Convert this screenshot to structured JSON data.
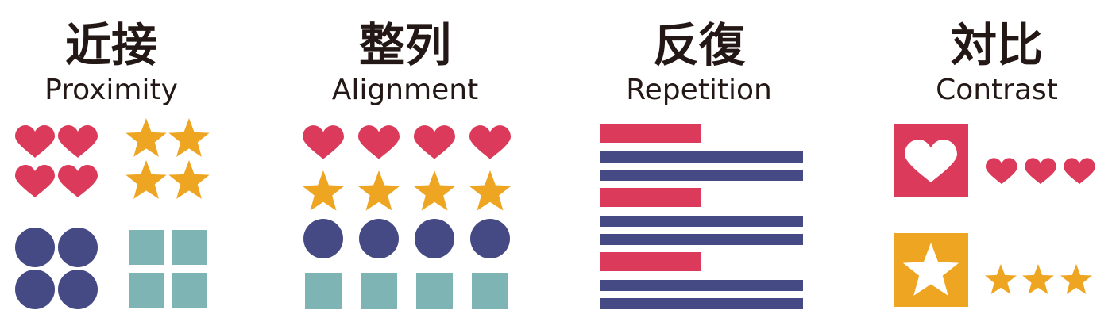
{
  "colors": {
    "heart": "#dc3a5a",
    "star": "#eea521",
    "circle": "#454a84",
    "square": "#7eb5b4",
    "stripe_red": "#dc3a5a",
    "stripe_navy": "#454a84",
    "text": "#231815"
  },
  "panels": [
    {
      "title_jp": "近接",
      "title_en": "Proximity"
    },
    {
      "title_jp": "整列",
      "title_en": "Alignment"
    },
    {
      "title_jp": "反復",
      "title_en": "Repetition"
    },
    {
      "title_jp": "対比",
      "title_en": "Contrast"
    }
  ],
  "icons": {
    "shapes": [
      "heart-icon",
      "star-icon",
      "circle-icon",
      "square-icon"
    ]
  }
}
